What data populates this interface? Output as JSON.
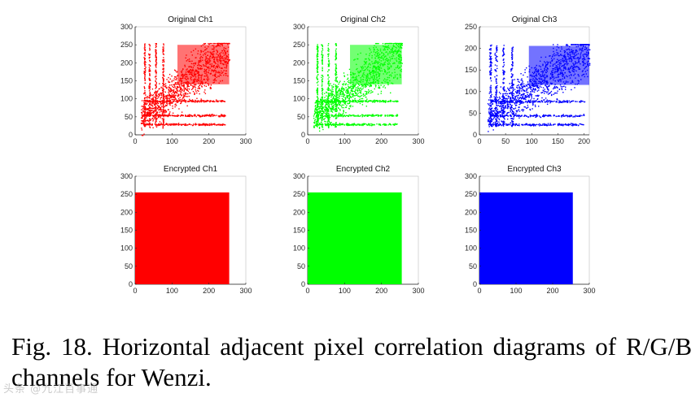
{
  "chart_data": [
    {
      "type": "scatter",
      "title": "Original Ch1",
      "color": "#ff0000",
      "xlim": [
        0,
        300
      ],
      "ylim": [
        0,
        300
      ],
      "xticks": [
        0,
        100,
        200,
        300
      ],
      "yticks": [
        0,
        50,
        100,
        150,
        200,
        250,
        300
      ],
      "grid": false,
      "x_range": [
        0,
        255
      ],
      "y_range": [
        0,
        255
      ],
      "pattern": "correlated"
    },
    {
      "type": "scatter",
      "title": "Original Ch2",
      "color": "#00ff00",
      "xlim": [
        0,
        300
      ],
      "ylim": [
        0,
        300
      ],
      "xticks": [
        0,
        100,
        200,
        300
      ],
      "yticks": [
        0,
        50,
        100,
        150,
        200,
        250,
        300
      ],
      "grid": false,
      "x_range": [
        0,
        255
      ],
      "y_range": [
        0,
        255
      ],
      "pattern": "correlated"
    },
    {
      "type": "scatter",
      "title": "Original Ch3",
      "color": "#0000ff",
      "xlim": [
        0,
        210
      ],
      "ylim": [
        0,
        250
      ],
      "xticks": [
        0,
        50,
        100,
        150,
        200
      ],
      "yticks": [
        0,
        50,
        100,
        150,
        200,
        250
      ],
      "grid": false,
      "x_range": [
        0,
        210
      ],
      "y_range": [
        0,
        210
      ],
      "pattern": "correlated"
    },
    {
      "type": "scatter",
      "title": "Encrypted Ch1",
      "color": "#ff0000",
      "xlim": [
        0,
        300
      ],
      "ylim": [
        0,
        300
      ],
      "xticks": [
        0,
        100,
        200,
        300
      ],
      "yticks": [
        0,
        50,
        100,
        150,
        200,
        250,
        300
      ],
      "grid": false,
      "x_range": [
        0,
        255
      ],
      "y_range": [
        0,
        255
      ],
      "pattern": "uniform"
    },
    {
      "type": "scatter",
      "title": "Encrypted Ch2",
      "color": "#00ff00",
      "xlim": [
        0,
        300
      ],
      "ylim": [
        0,
        300
      ],
      "xticks": [
        0,
        100,
        200,
        300
      ],
      "yticks": [
        0,
        50,
        100,
        150,
        200,
        250,
        300
      ],
      "grid": false,
      "x_range": [
        0,
        255
      ],
      "y_range": [
        0,
        255
      ],
      "pattern": "uniform"
    },
    {
      "type": "scatter",
      "title": "Encrypted Ch3",
      "color": "#0000ff",
      "xlim": [
        0,
        300
      ],
      "ylim": [
        0,
        300
      ],
      "xticks": [
        0,
        100,
        200,
        300
      ],
      "yticks": [
        0,
        50,
        100,
        150,
        200,
        250,
        300
      ],
      "grid": false,
      "x_range": [
        0,
        255
      ],
      "y_range": [
        0,
        255
      ],
      "pattern": "uniform"
    }
  ],
  "caption": "Fig. 18. Horizontal adjacent pixel correlation diagrams of R/G/B channels for Wenzi.",
  "watermark": "头条 @九江百事通"
}
